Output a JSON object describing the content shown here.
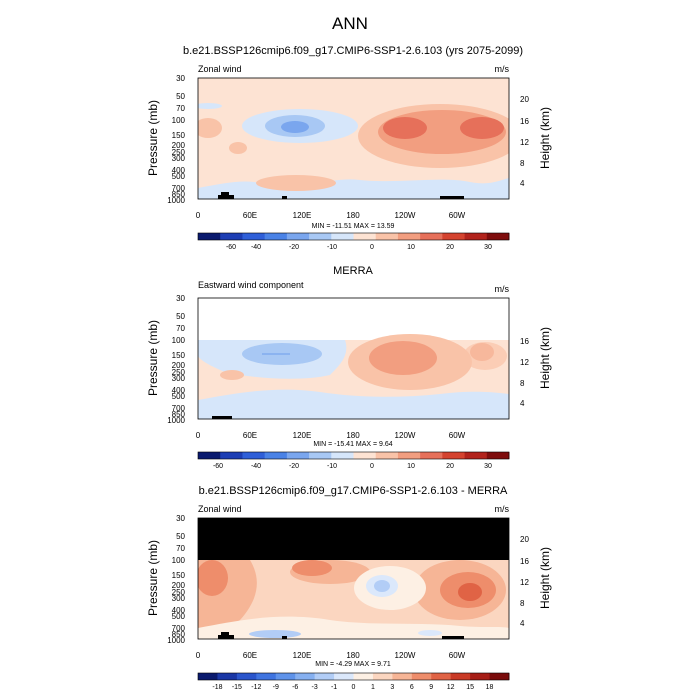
{
  "page_title": "ANN",
  "chart_data": [
    {
      "type": "heatmap",
      "title": "b.e21.BSSP126cmip6.f09_g17.CMIP6-SSP1-2.6.103 (yrs 2075-2099)",
      "left_string": "Zonal wind",
      "units": "m/s",
      "ylabel": "Pressure (mb)",
      "y2label": "Height (km)",
      "x_ticks": [
        "0",
        "60E",
        "120E",
        "180",
        "120W",
        "60W"
      ],
      "y_ticks": [
        "30",
        "50",
        "70",
        "100",
        "150",
        "200",
        "250",
        "300",
        "400",
        "500",
        "700",
        "850",
        "1000"
      ],
      "y2_ticks": [
        "20",
        "16",
        "12",
        "8",
        "4"
      ],
      "stats": "MIN = -11.51  MAX =  13.59",
      "min": -11.51,
      "max": 13.59,
      "y_log_scale": true,
      "masked_above_mb": null,
      "colorbar_levels": [
        "-60",
        "-40",
        "-20",
        "-10",
        "0",
        "10",
        "20",
        "30"
      ],
      "colorbar_colors": [
        "#0a1a6e",
        "#1d3eb4",
        "#2f5fd8",
        "#4a82e6",
        "#7aa6ee",
        "#a8c8f4",
        "#d6e6fa",
        "#fde3d3",
        "#f9c3a8",
        "#f29e80",
        "#e6705a",
        "#d4432f",
        "#b2231c",
        "#7f0d0d"
      ]
    },
    {
      "type": "heatmap",
      "title": "MERRA",
      "left_string": "Eastward wind component",
      "units": "m/s",
      "ylabel": "Pressure (mb)",
      "y2label": "Height (km)",
      "x_ticks": [
        "0",
        "60E",
        "120E",
        "180",
        "120W",
        "60W"
      ],
      "y_ticks": [
        "30",
        "50",
        "70",
        "100",
        "150",
        "200",
        "250",
        "300",
        "400",
        "500",
        "700",
        "850",
        "1000"
      ],
      "y2_ticks": [
        "16",
        "12",
        "8",
        "4"
      ],
      "stats": "MIN = -15.41  MAX =   9.64",
      "min": -15.41,
      "max": 9.64,
      "y_log_scale": true,
      "masked_above_mb": 100,
      "colorbar_levels": [
        "-60",
        "-40",
        "-20",
        "-10",
        "0",
        "10",
        "20",
        "30"
      ],
      "colorbar_colors": [
        "#0a1a6e",
        "#1d3eb4",
        "#2f5fd8",
        "#4a82e6",
        "#7aa6ee",
        "#a8c8f4",
        "#d6e6fa",
        "#fde3d3",
        "#f9c3a8",
        "#f29e80",
        "#e6705a",
        "#d4432f",
        "#b2231c",
        "#7f0d0d"
      ]
    },
    {
      "type": "heatmap",
      "title": "b.e21.BSSP126cmip6.f09_g17.CMIP6-SSP1-2.6.103 - MERRA",
      "left_string": "Zonal wind",
      "units": "m/s",
      "ylabel": "Pressure (mb)",
      "y2label": "Height (km)",
      "x_ticks": [
        "0",
        "60E",
        "120E",
        "180",
        "120W",
        "60W"
      ],
      "y_ticks": [
        "30",
        "50",
        "70",
        "100",
        "150",
        "200",
        "250",
        "300",
        "400",
        "500",
        "700",
        "850",
        "1000"
      ],
      "y2_ticks": [
        "20",
        "16",
        "12",
        "8",
        "4"
      ],
      "stats": "MIN =  -4.29  MAX =   9.71",
      "min": -4.29,
      "max": 9.71,
      "y_log_scale": true,
      "masked_above_mb": 100,
      "colorbar_levels": [
        "-18",
        "-15",
        "-12",
        "-9",
        "-6",
        "-3",
        "-1",
        "0",
        "1",
        "3",
        "6",
        "9",
        "12",
        "15",
        "18"
      ],
      "colorbar_colors": [
        "#0a1a6e",
        "#1a37a6",
        "#2a55cc",
        "#3f74e0",
        "#5f93ea",
        "#86b0f0",
        "#b2cdf6",
        "#dbe8fb",
        "#fdf0e4",
        "#fbd6c0",
        "#f6b596",
        "#ee8d6b",
        "#e06345",
        "#c93a26",
        "#a61d16",
        "#7a0b0b"
      ]
    }
  ]
}
